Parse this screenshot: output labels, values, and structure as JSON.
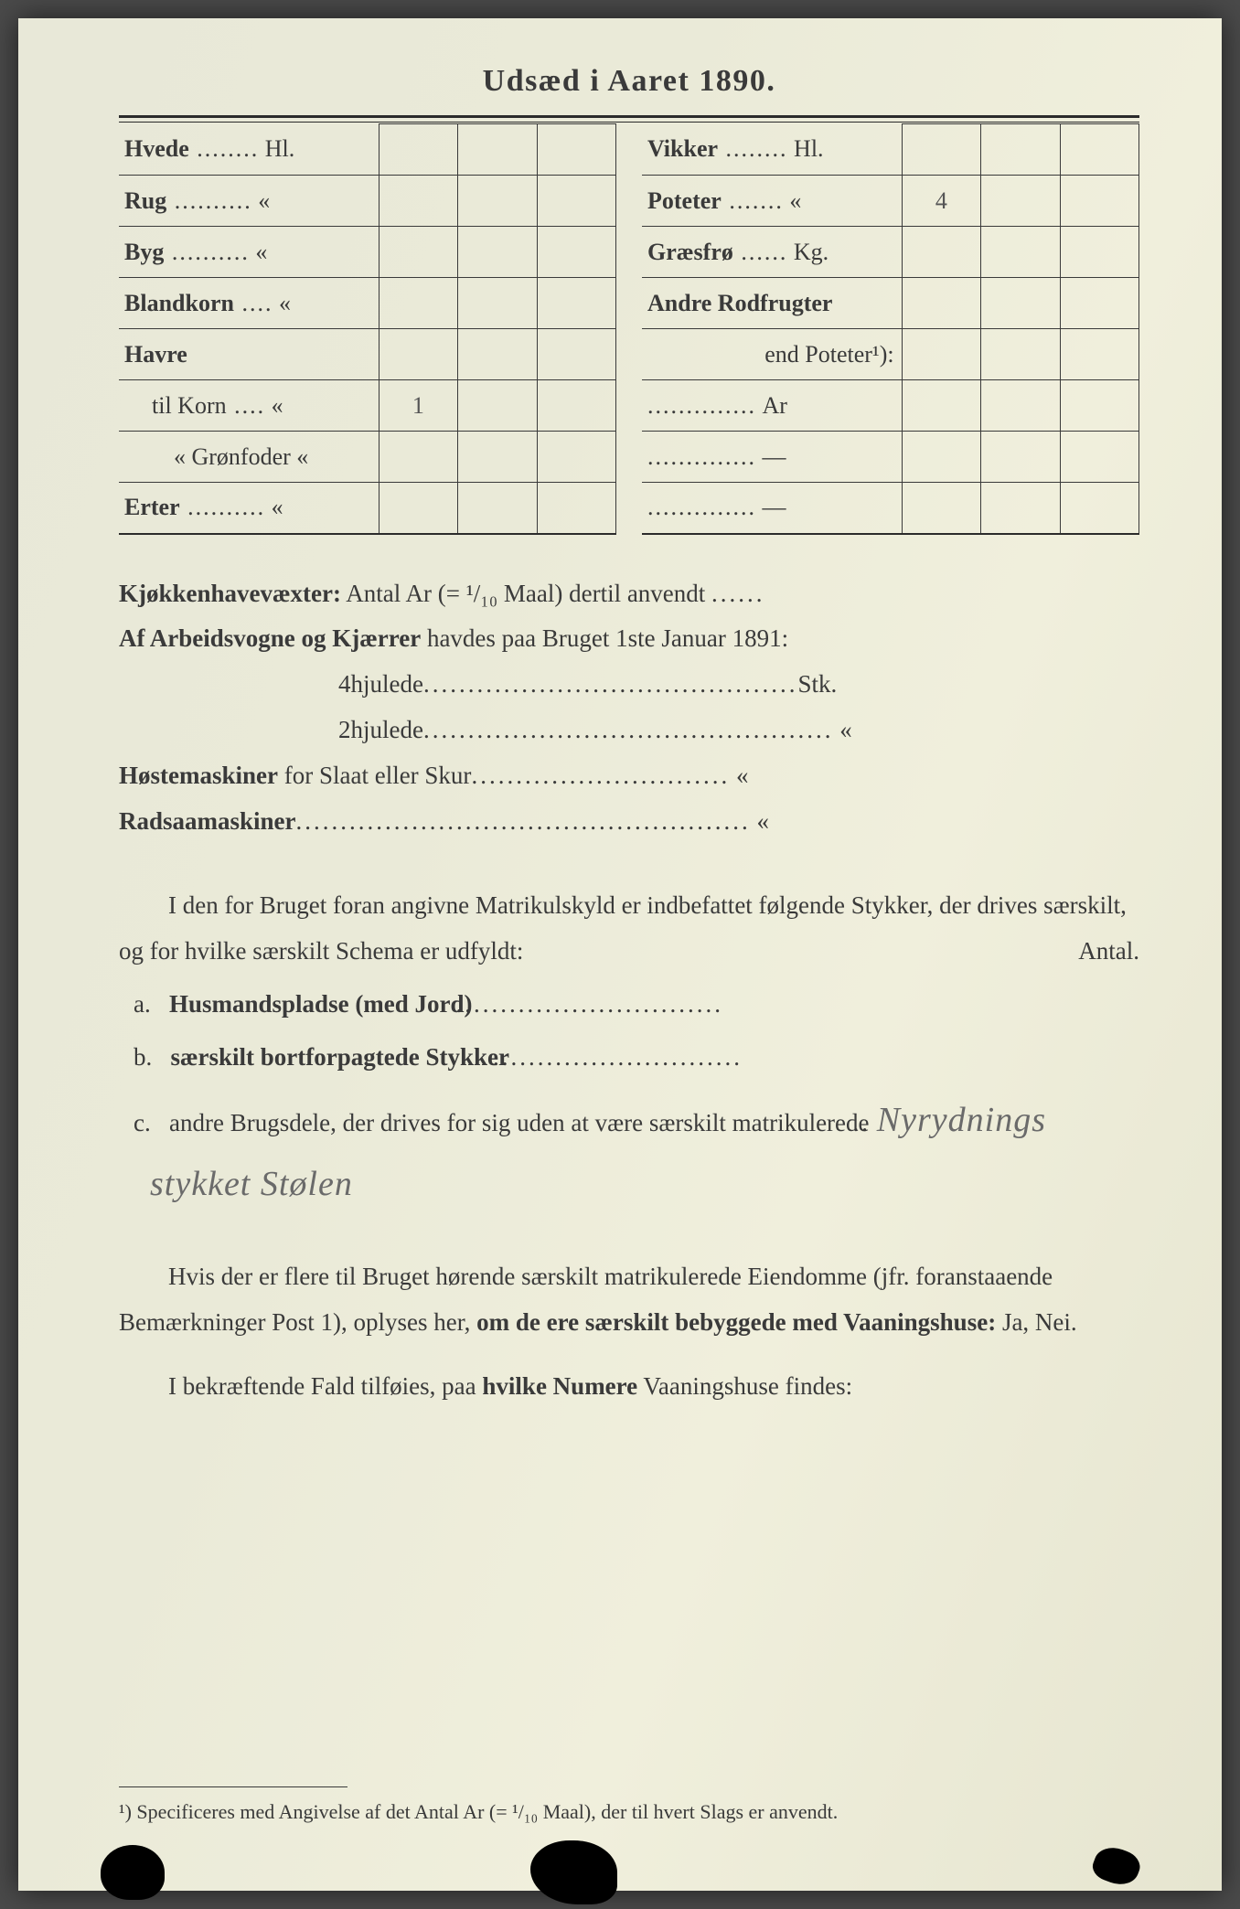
{
  "title": "Udsæd i Aaret 1890.",
  "left_rows": [
    {
      "label": "Hvede",
      "dots": "........",
      "unit": "Hl.",
      "v1": "",
      "v2": "",
      "v3": ""
    },
    {
      "label": "Rug",
      "dots": "..........",
      "unit": "«",
      "v1": "",
      "v2": "",
      "v3": ""
    },
    {
      "label": "Byg",
      "dots": "..........",
      "unit": "«",
      "v1": "",
      "v2": "",
      "v3": ""
    },
    {
      "label": "Blandkorn",
      "dots": "....",
      "unit": "«",
      "v1": "",
      "v2": "",
      "v3": ""
    },
    {
      "label": "Havre",
      "dots": "",
      "unit": "",
      "v1": "",
      "v2": "",
      "v3": ""
    },
    {
      "label": "til Korn",
      "dots": "....",
      "unit": "«",
      "v1": "1",
      "v2": "",
      "v3": "",
      "indent": 1,
      "norm": true
    },
    {
      "label": "«  Grønfoder",
      "dots": "",
      "unit": "«",
      "v1": "",
      "v2": "",
      "v3": "",
      "indent": 2,
      "norm": true
    },
    {
      "label": "Erter",
      "dots": "..........",
      "unit": "«",
      "v1": "",
      "v2": "",
      "v3": ""
    }
  ],
  "right_rows": [
    {
      "label": "Vikker",
      "dots": "........",
      "unit": "Hl.",
      "v1": "",
      "v2": "",
      "v3": ""
    },
    {
      "label": "Poteter",
      "dots": ".......",
      "unit": "«",
      "v1": "4",
      "v2": "",
      "v3": ""
    },
    {
      "label": "Græsfrø",
      "dots": "......",
      "unit": "Kg.",
      "v1": "",
      "v2": "",
      "v3": ""
    },
    {
      "label": "Andre Rodfrugter",
      "dots": "",
      "unit": "",
      "v1": "",
      "v2": "",
      "v3": ""
    },
    {
      "label": "end Poteter¹):",
      "dots": "",
      "unit": "",
      "v1": "",
      "v2": "",
      "v3": "",
      "right": true,
      "norm": true
    },
    {
      "label": "",
      "dots": "..............",
      "unit": "Ar",
      "v1": "",
      "v2": "",
      "v3": "",
      "norm": true
    },
    {
      "label": "",
      "dots": "..............",
      "unit": "—",
      "v1": "",
      "v2": "",
      "v3": "",
      "dash": true
    },
    {
      "label": "",
      "dots": "..............",
      "unit": "—",
      "v1": "",
      "v2": "",
      "v3": "",
      "dash": true
    }
  ],
  "lines": {
    "kjokken_label": "Kjøkkenhavevæxter:",
    "kjokken_rest": " Antal Ar (= ¹/₁₀ Maal) dertil anvendt ",
    "kjokken_dots": "......",
    "arbeid_label": "Af Arbeidsvogne og Kjærrer",
    "arbeid_rest": " havdes paa Bruget 1ste Januar 1891:",
    "fourwheel": "4hjulede",
    "fourwheel_dots": "..........................................",
    "fourwheel_unit": "Stk.",
    "twowheel": "2hjulede",
    "twowheel_dots": "..............................................",
    "twowheel_unit": "«",
    "hoste_label": "Høstemaskiner",
    "hoste_rest": " for Slaat eller Skur",
    "hoste_dots": ".............................",
    "hoste_unit": "«",
    "radsaa_label": "Radsaamaskiner",
    "radsaa_dots": "...................................................",
    "radsaa_unit": "«"
  },
  "para1_a": "I den for Bruget foran angivne Matrikulskyld er indbefattet følgende Stykker, der drives særskilt, og for hvilke særskilt Schema er udfyldt:",
  "para1_antal": "Antal.",
  "item_a_tag": "a.",
  "item_a": "Husmandspladse (med Jord)",
  "item_a_dots": "..............................",
  "item_b_tag": "b.",
  "item_b": "særskilt bortforpagtede Stykker",
  "item_b_dots": "............................",
  "item_c_tag": "c.",
  "item_c_1": "andre Brugsdele, der drives for sig uden at være særskilt matrikulerede",
  "item_c_dots": "..",
  "item_c_cursive": "Nyrydnings stykket Stølen",
  "para2": "Hvis der er flere til Bruget hørende særskilt matrikulerede Eiendomme (jfr. foranstaaende Bemærkninger Post 1), oplyses her, ",
  "para2_bold": "om de ere særskilt bebyggede med Vaaningshuse:",
  "para2_tail": " Ja, Nei.",
  "para3_a": "I bekræftende Fald tilføies, paa ",
  "para3_bold": "hvilke Numere",
  "para3_b": " Vaaningshuse findes:",
  "footnote": "¹) Specificeres med Angivelse af det Antal Ar (= ¹/₁₀ Maal), der til hvert Slags er anvendt.",
  "colors": {
    "paper": "#eaead8",
    "ink": "#3a3a3a",
    "handwriting": "#6a6a6a"
  }
}
